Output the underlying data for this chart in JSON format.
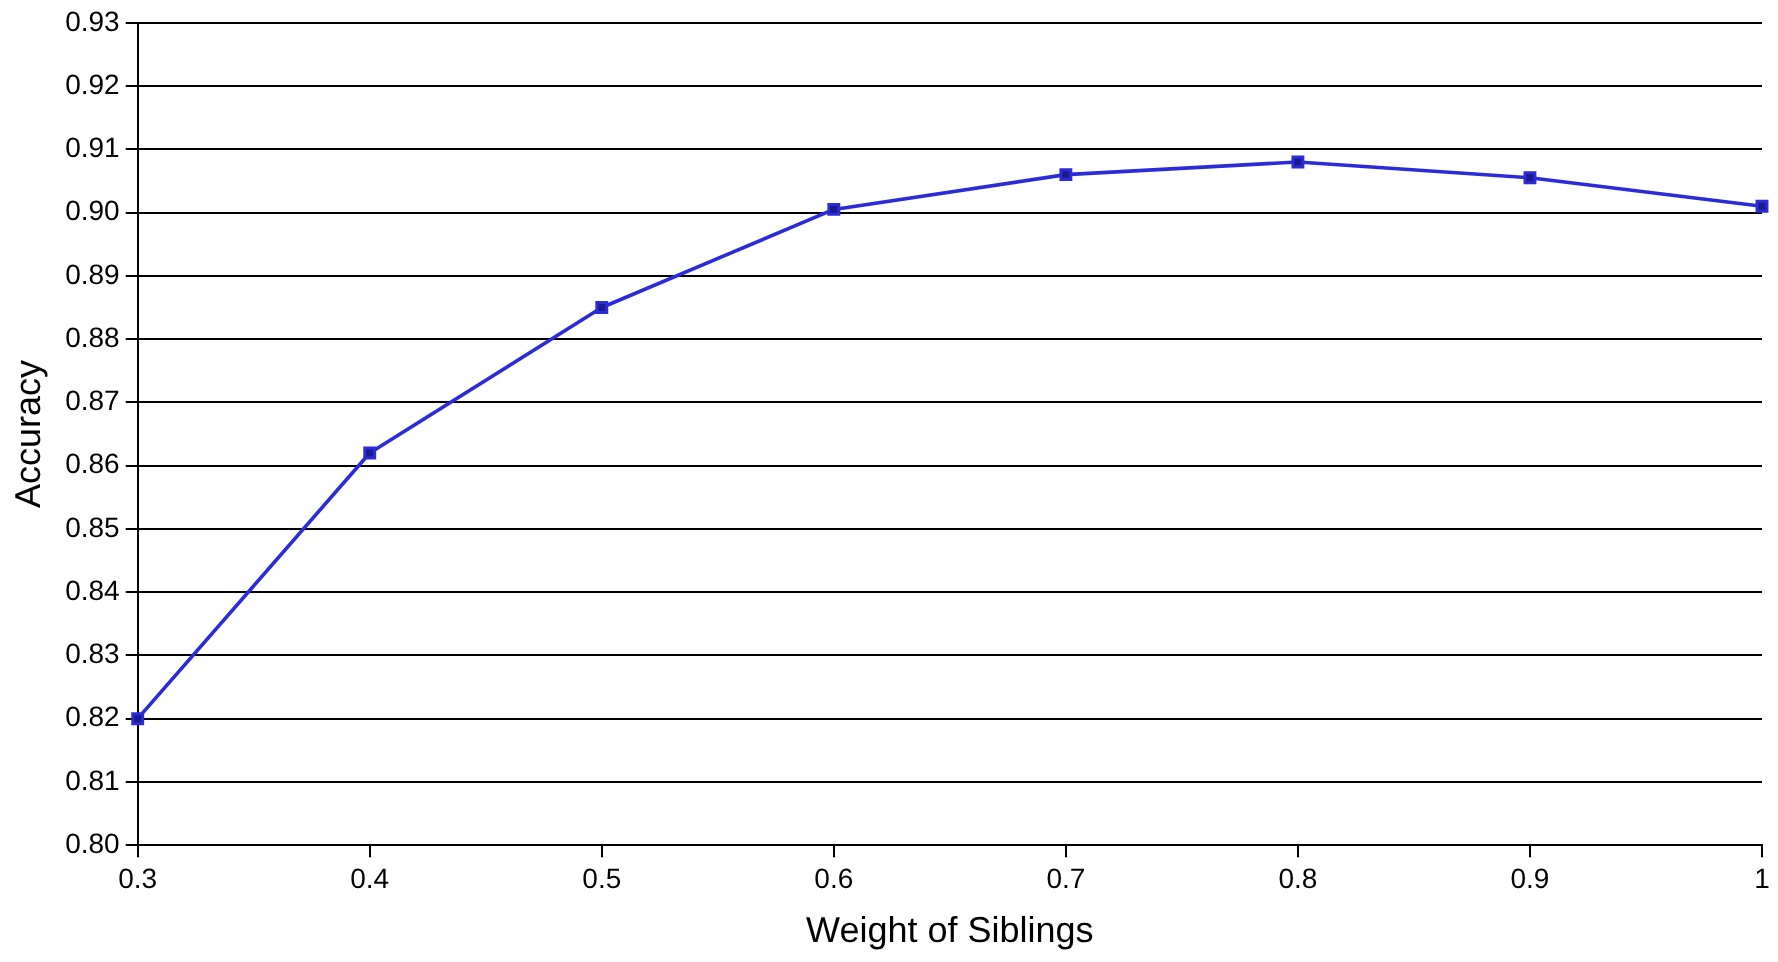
{
  "chart_data": {
    "type": "line",
    "xlabel": "Weight of Siblings",
    "ylabel": "Accuracy",
    "x": [
      0.3,
      0.4,
      0.5,
      0.6,
      0.7,
      0.8,
      0.9,
      1
    ],
    "series": [
      {
        "color": "#2b2bd9",
        "values": [
          0.82,
          0.862,
          0.885,
          0.9005,
          0.906,
          0.908,
          0.9055,
          0.901
        ]
      }
    ],
    "xlim": [
      0.3,
      1
    ],
    "xticks": [
      0.3,
      0.4,
      0.5,
      0.6,
      0.7,
      0.8,
      0.9,
      1
    ],
    "ylim": [
      0.8,
      0.93
    ],
    "yticks": [
      {
        "value": 0.8,
        "label": "0.80"
      },
      {
        "value": 0.81,
        "label": "0.81"
      },
      {
        "value": 0.82,
        "label": "0.82"
      },
      {
        "value": 0.83,
        "label": "0.83"
      },
      {
        "value": 0.84,
        "label": "0.84"
      },
      {
        "value": 0.85,
        "label": "0.85"
      },
      {
        "value": 0.86,
        "label": "0.86"
      },
      {
        "value": 0.87,
        "label": "0.87"
      },
      {
        "value": 0.88,
        "label": "0.88"
      },
      {
        "value": 0.89,
        "label": "0.89"
      },
      {
        "value": 0.9,
        "label": "0.90"
      },
      {
        "value": 0.91,
        "label": "0.91"
      },
      {
        "value": 0.92,
        "label": "0.92"
      },
      {
        "value": 0.93,
        "label": "0.93"
      }
    ],
    "grid": "y",
    "legend": false,
    "marker": "square",
    "line_style": "solid"
  }
}
